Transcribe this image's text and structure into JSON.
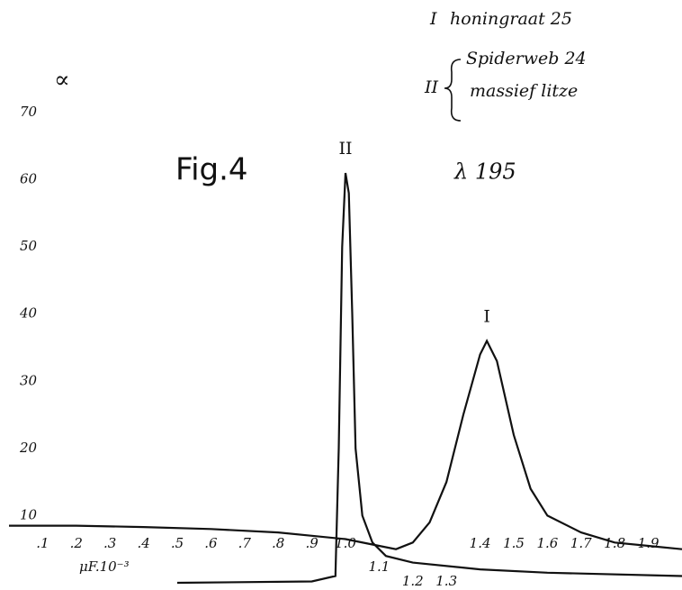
{
  "chart_data": {
    "type": "line",
    "title": "Fig.4",
    "annotation": "λ 195",
    "y_label": "∝",
    "x_label": "μF.10⁻³",
    "legend_notes": {
      "I": "honingraat 25",
      "II": [
        "Spiderweb 24",
        "massief litze"
      ]
    },
    "xlim": [
      0,
      2
    ],
    "ylim": [
      0,
      70
    ],
    "xticks": [
      {
        "value": 0.1,
        "label": ".1"
      },
      {
        "value": 0.2,
        "label": ".2"
      },
      {
        "value": 0.3,
        "label": ".3"
      },
      {
        "value": 0.4,
        "label": ".4"
      },
      {
        "value": 0.5,
        "label": ".5"
      },
      {
        "value": 0.6,
        "label": ".6"
      },
      {
        "value": 0.7,
        "label": ".7"
      },
      {
        "value": 0.8,
        "label": ".8"
      },
      {
        "value": 0.9,
        "label": ".9"
      },
      {
        "value": 1.0,
        "label": "1.0"
      },
      1.1,
      1.2,
      1.3,
      1.4,
      1.5,
      1.6,
      1.7,
      1.8,
      1.9
    ],
    "yticks": [
      10,
      20,
      30,
      40,
      50,
      60,
      70
    ],
    "grid": false,
    "series": [
      {
        "name": "I",
        "color": "#111111",
        "x": [
          0,
          0.2,
          0.4,
          0.6,
          0.8,
          0.9,
          1.0,
          1.1,
          1.15,
          1.2,
          1.25,
          1.3,
          1.35,
          1.4,
          1.42,
          1.45,
          1.5,
          1.55,
          1.6,
          1.7,
          1.8,
          1.9,
          2.0
        ],
        "values": [
          8.5,
          8.5,
          8.3,
          8,
          7.5,
          7,
          6.5,
          5.5,
          5,
          6,
          9,
          15,
          25,
          34,
          36,
          33,
          22,
          14,
          10,
          7.5,
          6,
          5.5,
          5
        ]
      },
      {
        "name": "II",
        "color": "#111111",
        "x": [
          0.5,
          0.9,
          0.97,
          0.98,
          0.99,
          1.0,
          1.01,
          1.02,
          1.03,
          1.05,
          1.08,
          1.12,
          1.2,
          1.4,
          1.6,
          2.0
        ],
        "values": [
          0,
          0.2,
          1,
          20,
          50,
          61,
          58,
          40,
          20,
          10,
          6,
          4,
          3,
          2,
          1.5,
          1
        ]
      }
    ]
  }
}
